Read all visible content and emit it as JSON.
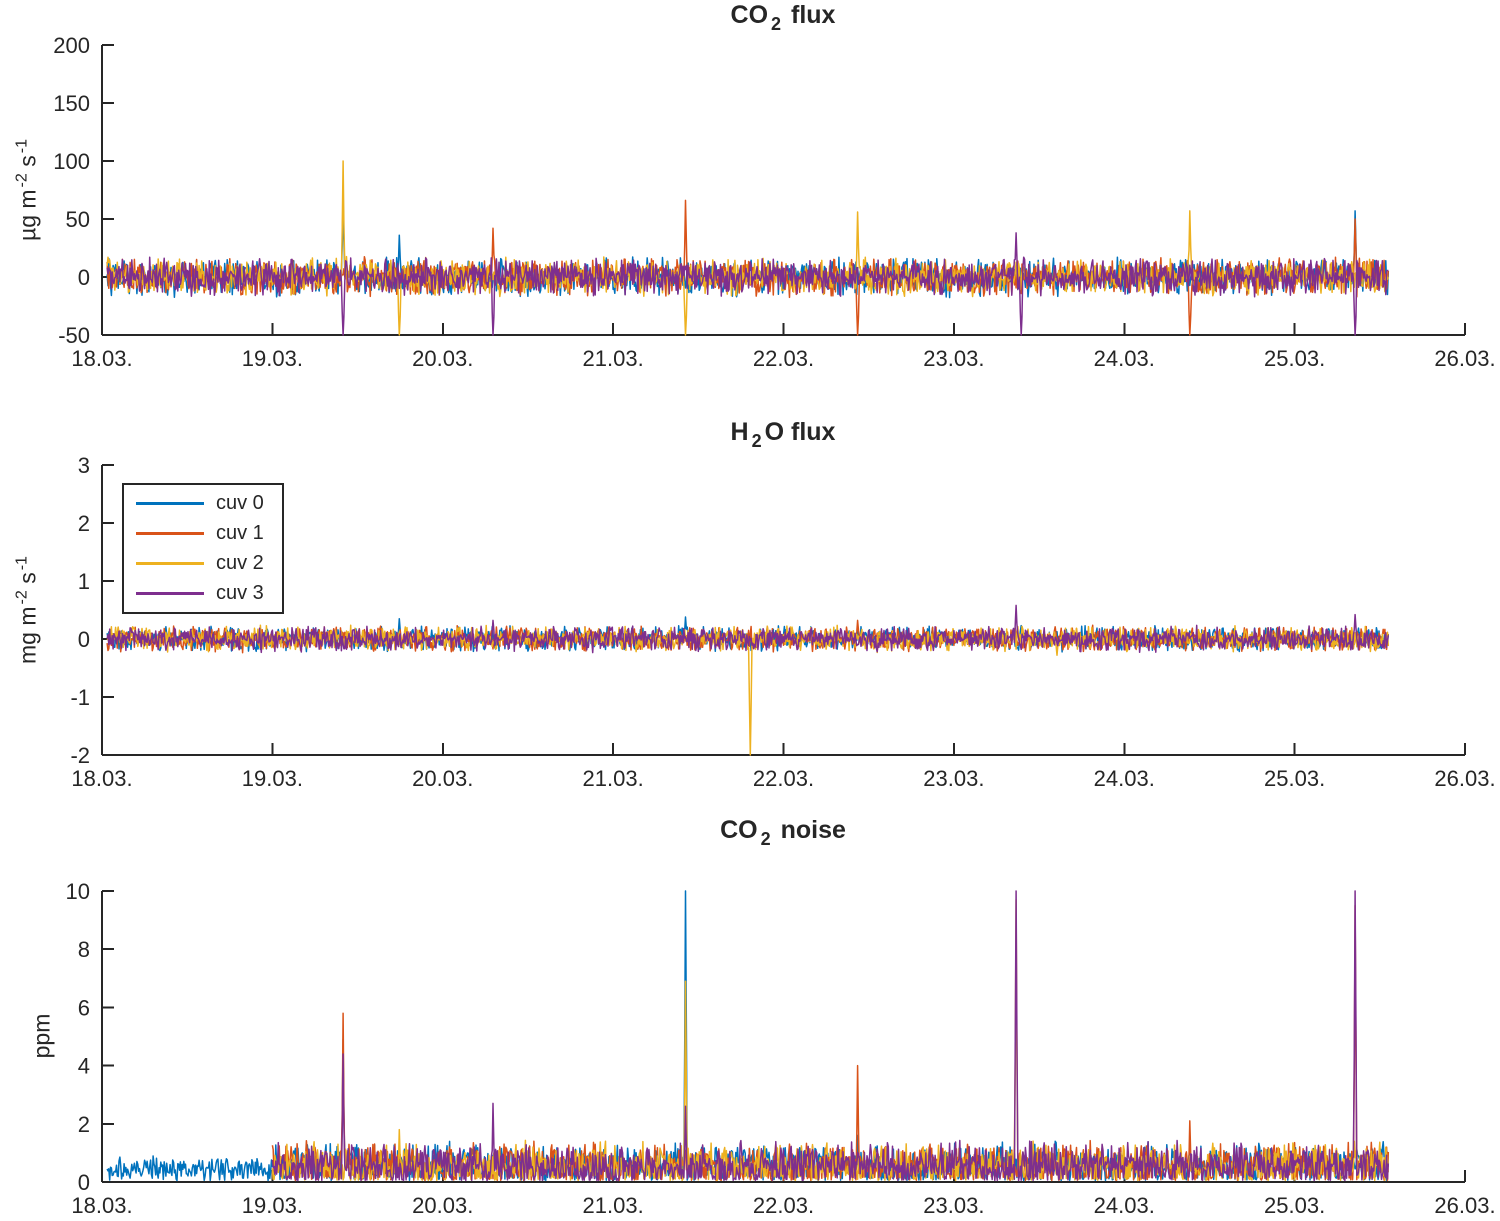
{
  "figure": {
    "background": "#ffffff",
    "axis_color": "#262626",
    "font_color": "#262626"
  },
  "legend": {
    "position": "upper-left-of-h2o-flux-plot",
    "entries": [
      {
        "label": "cuv 0",
        "color": "#0072BD"
      },
      {
        "label": "cuv 1",
        "color": "#D95319"
      },
      {
        "label": "cuv 2",
        "color": "#EDB120"
      },
      {
        "label": "cuv 3",
        "color": "#7E2F8E"
      }
    ]
  },
  "chart_data": [
    {
      "type": "line",
      "title_text": "CO2 flux",
      "title_parts": [
        {
          "t": "CO"
        },
        {
          "sub": "2"
        },
        {
          "t": " flux"
        }
      ],
      "ylabel_text": "µg m -2 s -1",
      "ylabel_parts": [
        {
          "t": "µg m"
        },
        {
          "sup": "-2"
        },
        {
          "t": " s"
        },
        {
          "sup": "-1"
        }
      ],
      "xlim": [
        18,
        26
      ],
      "ylim": [
        -50,
        200
      ],
      "ytick_values": [
        -50,
        0,
        50,
        100,
        150,
        200
      ],
      "ytick_labels": [
        "-50",
        "0",
        "50",
        "100",
        "150",
        "200"
      ],
      "xtick_values": [
        18,
        19,
        20,
        21,
        22,
        23,
        24,
        25,
        26
      ],
      "xtick_labels": [
        "18.03.",
        "19.03.",
        "20.03.",
        "21.03.",
        "22.03.",
        "23.03.",
        "24.03.",
        "25.03.",
        "26.03."
      ],
      "grid": false,
      "series": [
        {
          "name": "cuv 0",
          "color": "#0072BD",
          "seed": 11,
          "segments": [
            {
              "t0": 18.03,
              "t1": 25.55,
              "baseline": 0,
              "amplitude": 18
            }
          ],
          "spikes": [
            [
              19.41,
              68
            ],
            [
              19.74,
              36
            ],
            [
              25.35,
              57
            ]
          ]
        },
        {
          "name": "cuv 1",
          "color": "#D95319",
          "seed": 22,
          "segments": [
            {
              "t0": 18.03,
              "t1": 25.55,
              "baseline": 0,
              "amplitude": 18
            }
          ],
          "spikes": [
            [
              20.29,
              42
            ],
            [
              21.42,
              66
            ],
            [
              22.43,
              -75
            ],
            [
              24.38,
              -75
            ],
            [
              25.35,
              50
            ]
          ]
        },
        {
          "name": "cuv 2",
          "color": "#EDB120",
          "seed": 33,
          "segments": [
            {
              "t0": 18.03,
              "t1": 25.55,
              "baseline": 0,
              "amplitude": 18
            }
          ],
          "spikes": [
            [
              19.41,
              100
            ],
            [
              19.74,
              -75
            ],
            [
              21.42,
              -75
            ],
            [
              22.43,
              56
            ],
            [
              24.38,
              57
            ]
          ]
        },
        {
          "name": "cuv 3",
          "color": "#7E2F8E",
          "seed": 44,
          "segments": [
            {
              "t0": 18.03,
              "t1": 25.55,
              "baseline": 0,
              "amplitude": 18
            }
          ],
          "spikes": [
            [
              19.41,
              -75
            ],
            [
              20.29,
              -75
            ],
            [
              23.36,
              38
            ],
            [
              23.39,
              -75
            ],
            [
              25.35,
              -75
            ]
          ]
        }
      ]
    },
    {
      "type": "line",
      "title_text": "H2O flux",
      "title_parts": [
        {
          "t": "H"
        },
        {
          "sub": "2"
        },
        {
          "t": "O flux"
        }
      ],
      "ylabel_text": "mg m -2 s -1",
      "ylabel_parts": [
        {
          "t": "mg m"
        },
        {
          "sup": "-2"
        },
        {
          "t": " s"
        },
        {
          "sup": "-1"
        }
      ],
      "xlim": [
        18,
        26
      ],
      "ylim": [
        -2,
        3
      ],
      "ytick_values": [
        -2,
        -1,
        0,
        1,
        2,
        3
      ],
      "ytick_labels": [
        "-2",
        "-1",
        "0",
        "1",
        "2",
        "3"
      ],
      "xtick_values": [
        18,
        19,
        20,
        21,
        22,
        23,
        24,
        25,
        26
      ],
      "xtick_labels": [
        "18.03.",
        "19.03.",
        "20.03.",
        "21.03.",
        "22.03.",
        "23.03.",
        "24.03.",
        "25.03.",
        "26.03."
      ],
      "grid": false,
      "series": [
        {
          "name": "cuv 0",
          "color": "#0072BD",
          "seed": 55,
          "segments": [
            {
              "t0": 18.03,
              "t1": 25.55,
              "baseline": 0,
              "amplitude": 0.24
            }
          ],
          "spikes": [
            [
              19.74,
              0.35
            ],
            [
              21.42,
              0.38
            ]
          ]
        },
        {
          "name": "cuv 1",
          "color": "#D95319",
          "seed": 66,
          "segments": [
            {
              "t0": 18.03,
              "t1": 25.55,
              "baseline": 0,
              "amplitude": 0.24
            }
          ],
          "spikes": [
            [
              22.43,
              0.32
            ]
          ]
        },
        {
          "name": "cuv 2",
          "color": "#EDB120",
          "seed": 77,
          "segments": [
            {
              "t0": 18.03,
              "t1": 25.55,
              "baseline": 0,
              "amplitude": 0.24
            }
          ],
          "spikes": [
            [
              21.8,
              -2.6
            ],
            [
              23.6,
              -0.28
            ]
          ]
        },
        {
          "name": "cuv 3",
          "color": "#7E2F8E",
          "seed": 88,
          "segments": [
            {
              "t0": 18.03,
              "t1": 25.55,
              "baseline": 0,
              "amplitude": 0.24
            }
          ],
          "spikes": [
            [
              20.29,
              0.32
            ],
            [
              23.36,
              0.58
            ],
            [
              25.35,
              0.42
            ]
          ]
        }
      ]
    },
    {
      "type": "line",
      "title_text": "CO2 noise",
      "title_parts": [
        {
          "t": "CO"
        },
        {
          "sub": "2"
        },
        {
          "t": " noise"
        }
      ],
      "ylabel_text": "ppm",
      "ylabel_parts": [
        {
          "t": "ppm"
        }
      ],
      "xlim": [
        18,
        26
      ],
      "ylim": [
        0,
        10
      ],
      "ytick_values": [
        0,
        2,
        4,
        6,
        8,
        10
      ],
      "ytick_labels": [
        "0",
        "2",
        "4",
        "6",
        "8",
        "10"
      ],
      "xtick_values": [
        18,
        19,
        20,
        21,
        22,
        23,
        24,
        25,
        26
      ],
      "xtick_labels": [
        "18.03.",
        "19.03.",
        "20.03.",
        "21.03.",
        "22.03.",
        "23.03.",
        "24.03.",
        "25.03.",
        "26.03."
      ],
      "grid": false,
      "clamp_min": 0.05,
      "series": [
        {
          "name": "cuv 0",
          "color": "#0072BD",
          "seed": 111,
          "segments": [
            {
              "t0": 18.03,
              "t1": 19.0,
              "baseline": 0.45,
              "amplitude": 0.5
            },
            {
              "t0": 19.0,
              "t1": 25.55,
              "baseline": 0.55,
              "amplitude": 0.9
            }
          ],
          "spikes": [
            [
              19.41,
              4.9
            ],
            [
              21.42,
              11.5
            ],
            [
              22.43,
              1.6
            ]
          ]
        },
        {
          "name": "cuv 1",
          "color": "#D95319",
          "seed": 122,
          "segments": [
            {
              "t0": 19.0,
              "t1": 25.55,
              "baseline": 0.55,
              "amplitude": 0.9
            }
          ],
          "spikes": [
            [
              19.41,
              5.8
            ],
            [
              22.43,
              4.0
            ],
            [
              24.38,
              2.1
            ],
            [
              25.35,
              9.5
            ]
          ]
        },
        {
          "name": "cuv 2",
          "color": "#EDB120",
          "seed": 133,
          "segments": [
            {
              "t0": 19.0,
              "t1": 25.55,
              "baseline": 0.55,
              "amplitude": 0.9
            }
          ],
          "spikes": [
            [
              19.74,
              1.8
            ],
            [
              21.42,
              6.9
            ],
            [
              23.36,
              9.7
            ]
          ]
        },
        {
          "name": "cuv 3",
          "color": "#7E2F8E",
          "seed": 144,
          "segments": [
            {
              "t0": 19.0,
              "t1": 25.55,
              "baseline": 0.55,
              "amplitude": 0.9
            }
          ],
          "spikes": [
            [
              19.41,
              4.4
            ],
            [
              20.29,
              2.7
            ],
            [
              21.42,
              2.6
            ],
            [
              23.36,
              11.5
            ],
            [
              25.35,
              11.5
            ]
          ]
        }
      ]
    }
  ]
}
